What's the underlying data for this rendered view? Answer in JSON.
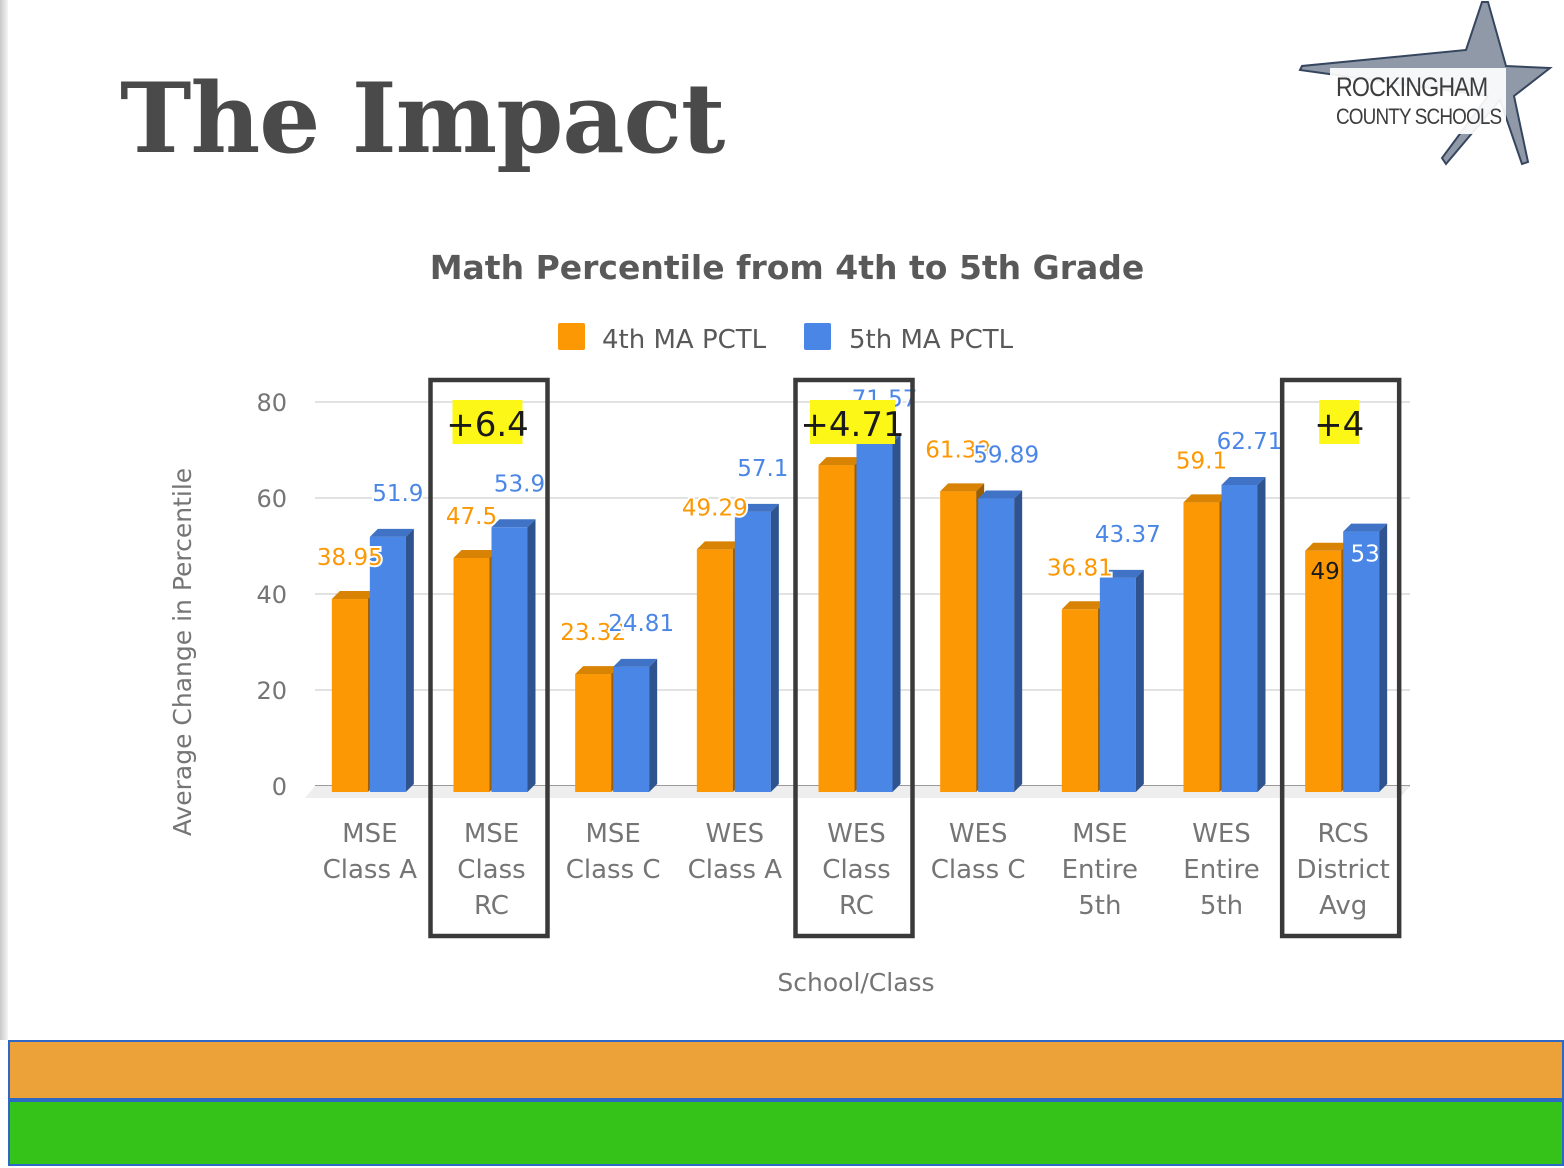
{
  "slide": {
    "title": "The Impact",
    "logo_line1": "ROCKINGHAM",
    "logo_line2": "COUNTY SCHOOLS"
  },
  "colors": {
    "series1": "#fb9804",
    "series2": "#4a86e6",
    "highlight": "#fcf716",
    "box": "#3a3a3a",
    "band_orange": "#eca238",
    "band_green": "#35c319"
  },
  "chart_data": {
    "type": "bar",
    "title": "Math Percentile from 4th to 5th Grade",
    "xlabel": "School/Class",
    "ylabel": "Average Change in Percentile",
    "ylim": [
      0,
      80
    ],
    "yticks": [
      "0",
      "20",
      "40",
      "60",
      "80"
    ],
    "grid": true,
    "legend_position": "top",
    "categories": [
      [
        "MSE",
        "Class A"
      ],
      [
        "MSE",
        "Class",
        "RC"
      ],
      [
        "MSE",
        "Class C"
      ],
      [
        "WES",
        "Class A"
      ],
      [
        "WES",
        "Class",
        "RC"
      ],
      [
        "WES",
        "Class C"
      ],
      [
        "MSE",
        "Entire",
        "5th"
      ],
      [
        "WES",
        "Entire",
        "5th"
      ],
      [
        "RCS",
        "District",
        "Avg"
      ]
    ],
    "series": [
      {
        "name": "4th MA PCTL",
        "values": [
          38.95,
          47.5,
          23.32,
          49.29,
          66.86,
          61.39,
          36.81,
          59.1,
          49
        ],
        "labels": [
          "38.95",
          "47.5",
          "23.32",
          "49.29",
          "",
          "61.39",
          "36.81",
          "59.1",
          "49"
        ]
      },
      {
        "name": "5th MA PCTL",
        "values": [
          51.9,
          53.9,
          24.81,
          57.1,
          71.57,
          59.89,
          43.37,
          62.71,
          53
        ],
        "labels": [
          "51.9",
          "53.9",
          "24.81",
          "57.1",
          "71.57",
          "59.89",
          "43.37",
          "62.71",
          "53"
        ]
      }
    ],
    "highlight_boxes": [
      {
        "category_index": 1,
        "label": "+6.4"
      },
      {
        "category_index": 4,
        "label": "+4.71"
      },
      {
        "category_index": 8,
        "label": "+4"
      }
    ]
  }
}
